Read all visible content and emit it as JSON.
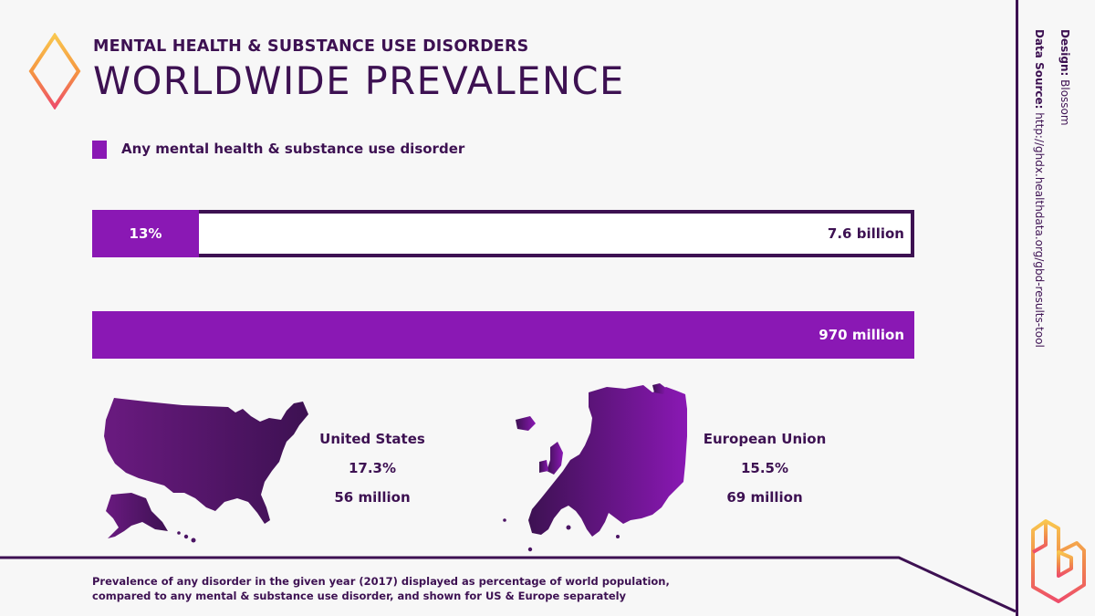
{
  "header": {
    "subtitle": "MENTAL HEALTH & SUBSTANCE USE DISORDERS",
    "title": "WORLDWIDE PREVALENCE"
  },
  "legend": {
    "label": "Any mental health & substance use disorder",
    "color": "#8a18b4"
  },
  "chart_data": {
    "type": "bar",
    "bars": [
      {
        "percent_label": "13%",
        "fraction": 0.13,
        "total_label": "7.6 billion"
      },
      {
        "fraction": 1.0,
        "value_label": "970 million"
      }
    ],
    "colors": {
      "fill": "#8a18b4",
      "outline": "#3d1152",
      "background": "#ffffff"
    }
  },
  "regions": {
    "us": {
      "name": "United States",
      "percent": "17.3%",
      "count": "56 million"
    },
    "eu": {
      "name": "European Union",
      "percent": "15.5%",
      "count": "69 million"
    }
  },
  "footnote": "Prevalence of any disorder in the given year (2017) displayed as percentage of world population, compared to any mental & substance use disorder, and shown for US & Europe separately",
  "credits": {
    "design_label": "Design:",
    "design_value": "Blossom",
    "source_label": "Data Source:",
    "source_value": "http://ghdx.healthdata.org/gbd-results-tool"
  },
  "icons": [
    "diamond-logo-icon",
    "us-map-icon",
    "eu-map-icon",
    "blossom-logo-icon"
  ]
}
